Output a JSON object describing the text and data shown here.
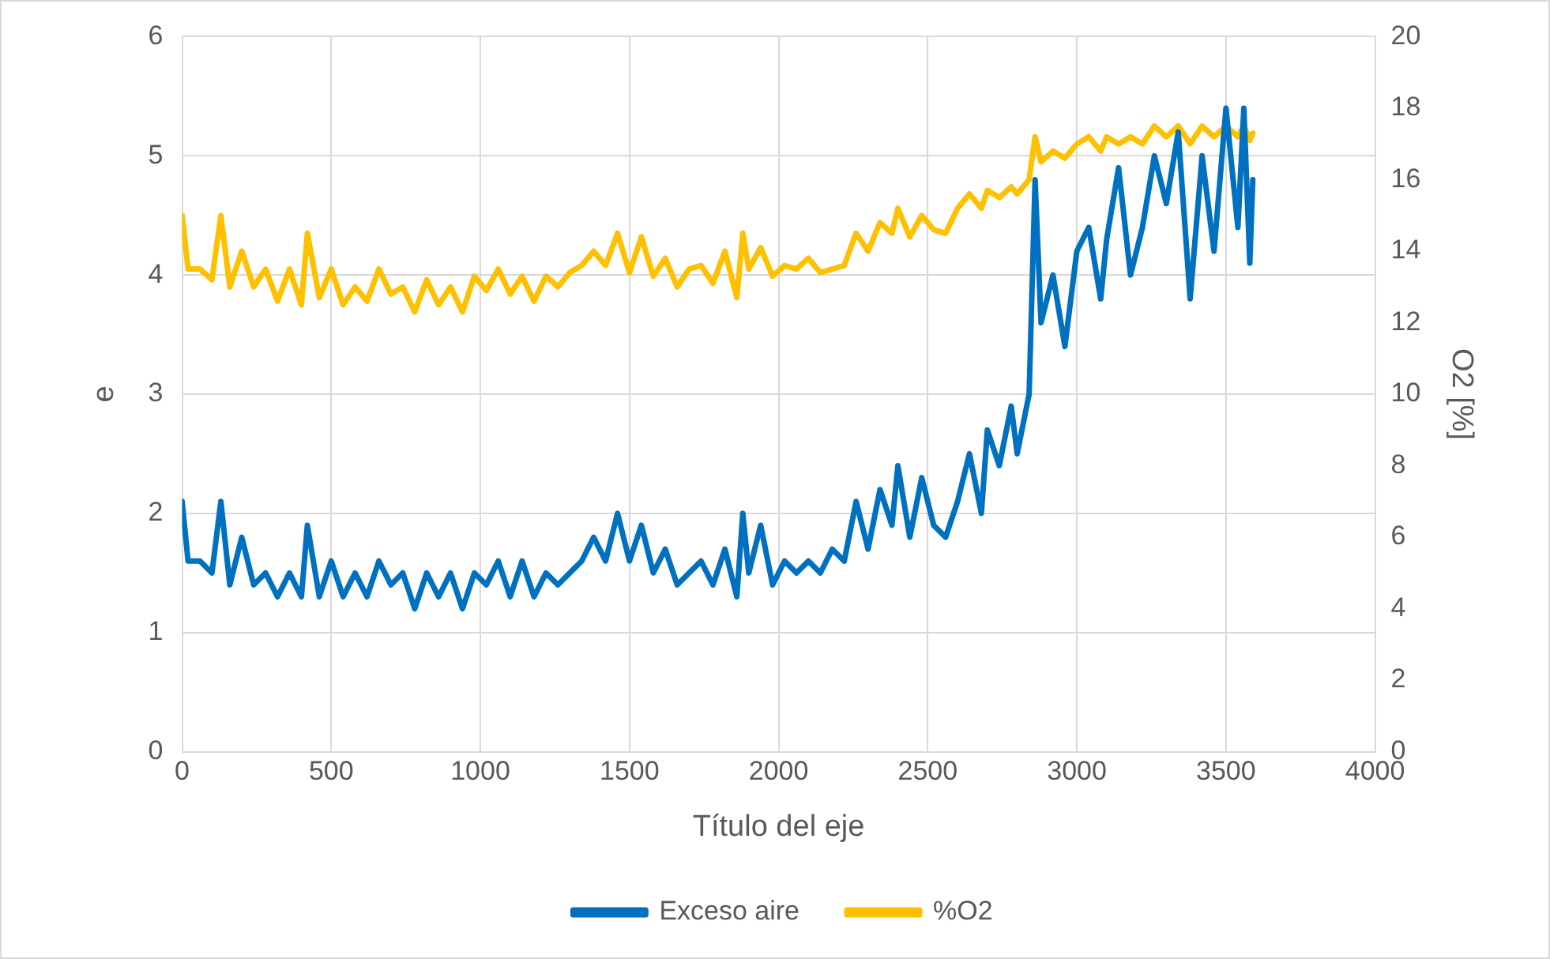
{
  "chart_data": {
    "type": "line",
    "xlabel": "Título del eje",
    "ylabel": "e",
    "y2label": "O2 [%]",
    "x": [
      0,
      20,
      60,
      100,
      130,
      160,
      200,
      240,
      280,
      320,
      360,
      400,
      420,
      460,
      500,
      540,
      580,
      620,
      660,
      700,
      740,
      780,
      820,
      860,
      900,
      940,
      980,
      1020,
      1060,
      1100,
      1140,
      1180,
      1220,
      1260,
      1300,
      1340,
      1380,
      1420,
      1460,
      1500,
      1540,
      1580,
      1620,
      1660,
      1700,
      1740,
      1780,
      1820,
      1860,
      1880,
      1900,
      1940,
      1980,
      2020,
      2060,
      2100,
      2140,
      2180,
      2220,
      2260,
      2300,
      2340,
      2380,
      2400,
      2440,
      2480,
      2520,
      2560,
      2600,
      2640,
      2680,
      2700,
      2740,
      2780,
      2800,
      2840,
      2860,
      2880,
      2920,
      2960,
      3000,
      3040,
      3080,
      3100,
      3140,
      3180,
      3220,
      3260,
      3300,
      3340,
      3380,
      3420,
      3460,
      3500,
      3540,
      3560,
      3580,
      3590
    ],
    "series": [
      {
        "name": "Exceso aire",
        "color": "#0070c0",
        "values": [
          2.1,
          1.6,
          1.6,
          1.5,
          2.1,
          1.4,
          1.8,
          1.4,
          1.5,
          1.3,
          1.5,
          1.3,
          1.9,
          1.3,
          1.6,
          1.3,
          1.5,
          1.3,
          1.6,
          1.4,
          1.5,
          1.2,
          1.5,
          1.3,
          1.5,
          1.2,
          1.5,
          1.4,
          1.6,
          1.3,
          1.6,
          1.3,
          1.5,
          1.4,
          1.5,
          1.6,
          1.8,
          1.6,
          2.0,
          1.6,
          1.9,
          1.5,
          1.7,
          1.4,
          1.5,
          1.6,
          1.4,
          1.7,
          1.3,
          2.0,
          1.5,
          1.9,
          1.4,
          1.6,
          1.5,
          1.6,
          1.5,
          1.7,
          1.6,
          2.1,
          1.7,
          2.2,
          1.9,
          2.4,
          1.8,
          2.3,
          1.9,
          1.8,
          2.1,
          2.5,
          2.0,
          2.7,
          2.4,
          2.9,
          2.5,
          3.0,
          4.8,
          3.6,
          4.0,
          3.4,
          4.2,
          4.4,
          3.8,
          4.3,
          4.9,
          4.0,
          4.4,
          5.0,
          4.6,
          5.2,
          3.8,
          5.0,
          4.2,
          5.4,
          4.4,
          5.4,
          4.1,
          4.8
        ]
      },
      {
        "name": "%O2",
        "color": "#ffc000",
        "axis": "y2",
        "values": [
          15,
          13.5,
          13.5,
          13.2,
          15,
          13,
          14,
          13,
          13.5,
          12.6,
          13.5,
          12.5,
          14.5,
          12.7,
          13.5,
          12.5,
          13,
          12.6,
          13.5,
          12.8,
          13,
          12.3,
          13.2,
          12.5,
          13,
          12.3,
          13.3,
          12.9,
          13.5,
          12.8,
          13.3,
          12.6,
          13.3,
          13,
          13.4,
          13.6,
          14,
          13.6,
          14.5,
          13.4,
          14.4,
          13.3,
          13.8,
          13,
          13.5,
          13.6,
          13.1,
          14,
          12.7,
          14.5,
          13.5,
          14.1,
          13.3,
          13.6,
          13.5,
          13.8,
          13.4,
          13.5,
          13.6,
          14.5,
          14,
          14.8,
          14.5,
          15.2,
          14.4,
          15,
          14.6,
          14.5,
          15.2,
          15.6,
          15.2,
          15.7,
          15.5,
          15.8,
          15.6,
          16,
          17.2,
          16.5,
          16.8,
          16.6,
          17,
          17.2,
          16.8,
          17.2,
          17,
          17.2,
          17,
          17.5,
          17.2,
          17.5,
          17,
          17.5,
          17.2,
          17.5,
          17.2,
          17.5,
          17.1,
          17.3
        ]
      }
    ],
    "xlim": [
      0,
      4000
    ],
    "xticks": [
      0,
      500,
      1000,
      1500,
      2000,
      2500,
      3000,
      3500,
      4000
    ],
    "ylim": [
      0,
      6
    ],
    "yticks": [
      0,
      1,
      2,
      3,
      4,
      5,
      6
    ],
    "y2lim": [
      0,
      20
    ],
    "y2ticks": [
      0,
      2,
      4,
      6,
      8,
      10,
      12,
      14,
      16,
      18,
      20
    ],
    "grid": true,
    "legend": "bottom",
    "marker": "none",
    "line_style": "solid"
  }
}
